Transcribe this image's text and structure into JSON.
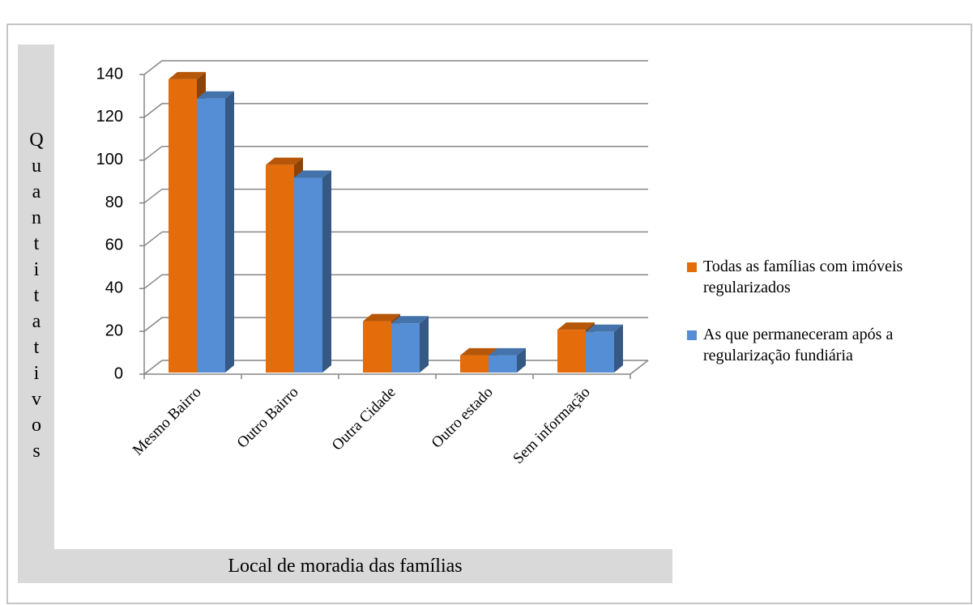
{
  "chart_data": {
    "type": "bar3d",
    "ylabel": "Quantitativos",
    "xlabel": "Local de moradia das famílias",
    "categories": [
      "Mesmo Bairro",
      "Outro Bairro",
      "Outra Cidade",
      "Outro estado",
      "Sem informação"
    ],
    "series": [
      {
        "name": "Todas as famílias com imóveis regularizados",
        "color": "#e46c0a",
        "values": [
          137,
          97,
          24,
          8,
          20
        ]
      },
      {
        "name": "As que permaneceram após a regularização fundiária",
        "color": "#558ed5",
        "values": [
          128,
          91,
          23,
          8,
          19
        ]
      }
    ],
    "ylim": [
      0,
      140
    ],
    "yticks": [
      0,
      20,
      40,
      60,
      80,
      100,
      120,
      140
    ],
    "grid": true,
    "legend": "right"
  }
}
